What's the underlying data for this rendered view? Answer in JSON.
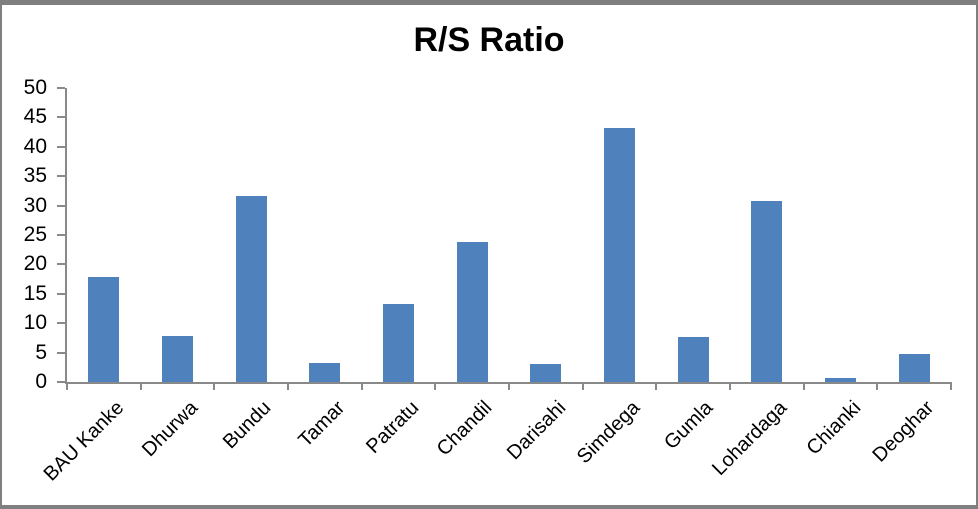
{
  "chart_data": {
    "type": "bar",
    "title": "R/S Ratio",
    "categories": [
      "BAU Kanke",
      "Dhurwa",
      "Bundu",
      "Tamar",
      "Patratu",
      "Chandil",
      "Darisahi",
      "Simdega",
      "Gumla",
      "Lohardaga",
      "Chianki",
      "Deoghar"
    ],
    "values": [
      17.8,
      7.8,
      31.6,
      3.3,
      13.3,
      23.8,
      3.0,
      43.2,
      7.7,
      30.8,
      0.6,
      4.7
    ],
    "xlabel": "",
    "ylabel": "",
    "ylim": [
      0,
      50
    ],
    "ytick_step": 5,
    "ytick_labels": [
      "0",
      "5",
      "10",
      "15",
      "20",
      "25",
      "30",
      "35",
      "40",
      "45",
      "50"
    ],
    "legend": "none",
    "grid": "off",
    "colors": {
      "bar_fill": "#4F81BD",
      "axis_line": "#898989",
      "text": "#000000",
      "frame_border": "#7F7F7F",
      "background": "#FFFFFF"
    }
  }
}
